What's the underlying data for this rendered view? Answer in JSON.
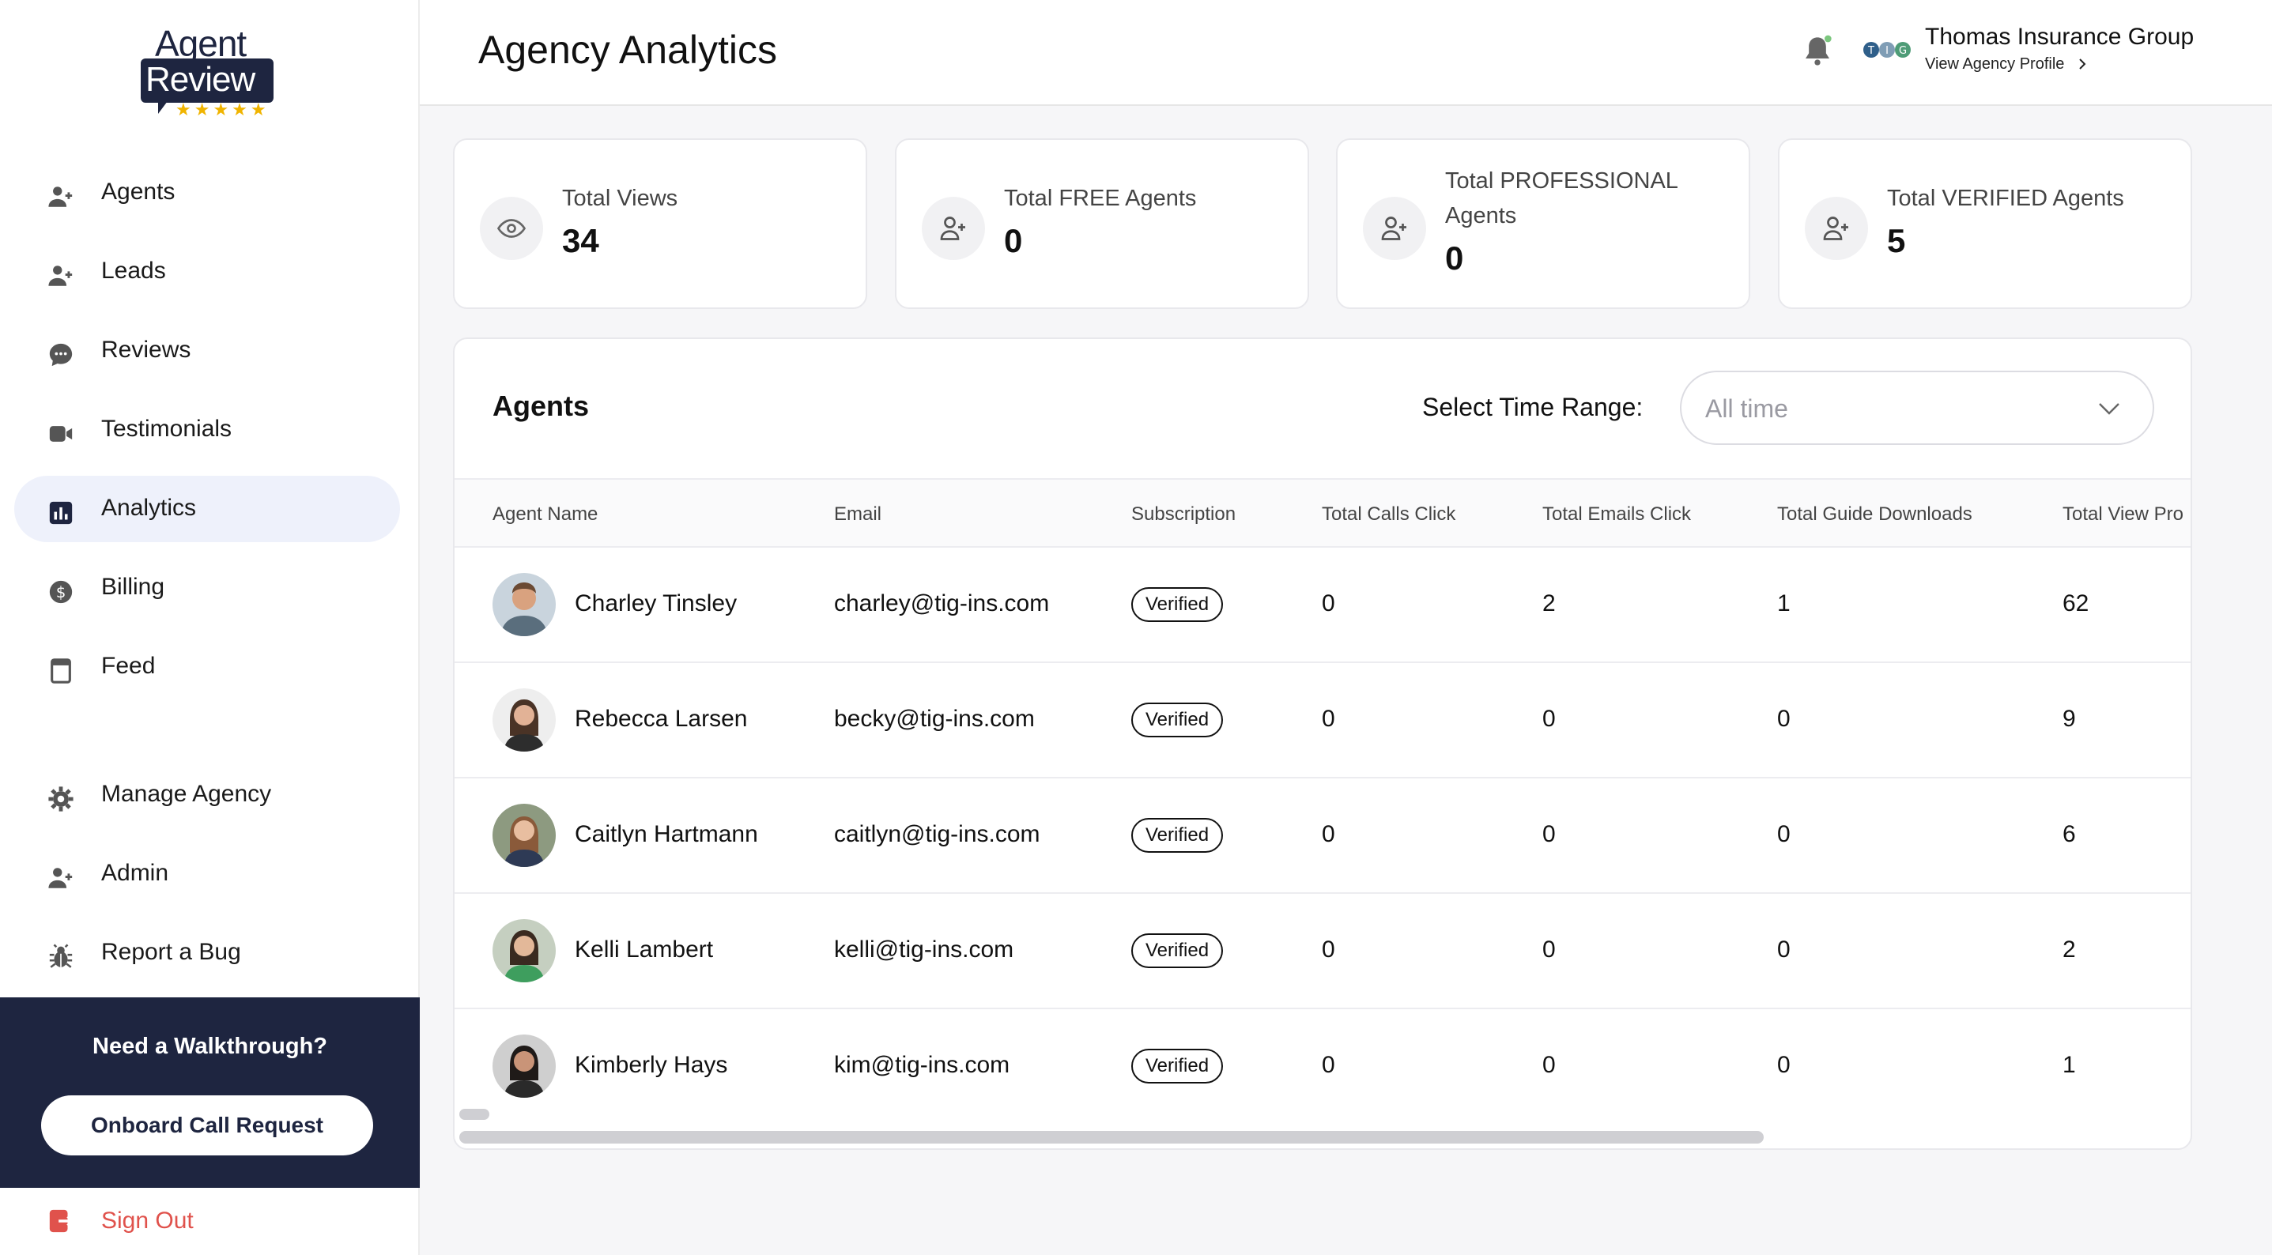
{
  "logo": {
    "line1": "Agent",
    "line2": "Review",
    "stars": "★★★★★"
  },
  "sidebar": {
    "items": [
      {
        "label": "Agents",
        "icon": "user-plus-icon"
      },
      {
        "label": "Leads",
        "icon": "user-plus-icon"
      },
      {
        "label": "Reviews",
        "icon": "chat-bubble-icon"
      },
      {
        "label": "Testimonials",
        "icon": "video-camera-icon"
      },
      {
        "label": "Analytics",
        "icon": "bar-chart-icon",
        "active": true
      },
      {
        "label": "Billing",
        "icon": "dollar-circle-icon"
      },
      {
        "label": "Feed",
        "icon": "document-icon"
      }
    ],
    "secondary": [
      {
        "label": "Manage Agency",
        "icon": "gear-icon"
      },
      {
        "label": "Admin",
        "icon": "user-plus-icon"
      },
      {
        "label": "Report a Bug",
        "icon": "bug-icon"
      }
    ],
    "walkthrough": {
      "title": "Need a Walkthrough?",
      "button": "Onboard Call Request"
    },
    "sign_out": "Sign Out"
  },
  "header": {
    "title": "Agency Analytics",
    "org_name": "Thomas Insurance Group",
    "org_link": "View Agency Profile",
    "org_logo_letters": [
      "T",
      "I",
      "G"
    ]
  },
  "stats": [
    {
      "label": "Total Views",
      "value": "34",
      "icon": "eye-icon"
    },
    {
      "label": "Total FREE Agents",
      "value": "0",
      "icon": "user-plus-icon"
    },
    {
      "label_line1": "Total PROFESSIONAL",
      "label_line2": "Agents",
      "value": "0",
      "icon": "user-plus-icon"
    },
    {
      "label": "Total VERIFIED Agents",
      "value": "5",
      "icon": "user-plus-icon"
    }
  ],
  "agents_table": {
    "title": "Agents",
    "time_range_label": "Select Time Range:",
    "time_range_value": "All time",
    "columns": [
      "Agent Name",
      "Email",
      "Subscription",
      "Total Calls Click",
      "Total Emails Click",
      "Total Guide Downloads",
      "Total View Pro"
    ],
    "rows": [
      {
        "name": "Charley Tinsley",
        "email": "charley@tig-ins.com",
        "subscription": "Verified",
        "calls": "0",
        "emails": "2",
        "downloads": "1",
        "views": "62"
      },
      {
        "name": "Rebecca Larsen",
        "email": "becky@tig-ins.com",
        "subscription": "Verified",
        "calls": "0",
        "emails": "0",
        "downloads": "0",
        "views": "9"
      },
      {
        "name": "Caitlyn Hartmann",
        "email": "caitlyn@tig-ins.com",
        "subscription": "Verified",
        "calls": "0",
        "emails": "0",
        "downloads": "0",
        "views": "6"
      },
      {
        "name": "Kelli Lambert",
        "email": "kelli@tig-ins.com",
        "subscription": "Verified",
        "calls": "0",
        "emails": "0",
        "downloads": "0",
        "views": "2"
      },
      {
        "name": "Kimberly Hays",
        "email": "kim@tig-ins.com",
        "subscription": "Verified",
        "calls": "0",
        "emails": "0",
        "downloads": "0",
        "views": "1"
      }
    ]
  },
  "colors": {
    "navy": "#1e2540",
    "active_bg": "#eef1fb",
    "signout": "#e0524c",
    "star": "#f0b400"
  }
}
